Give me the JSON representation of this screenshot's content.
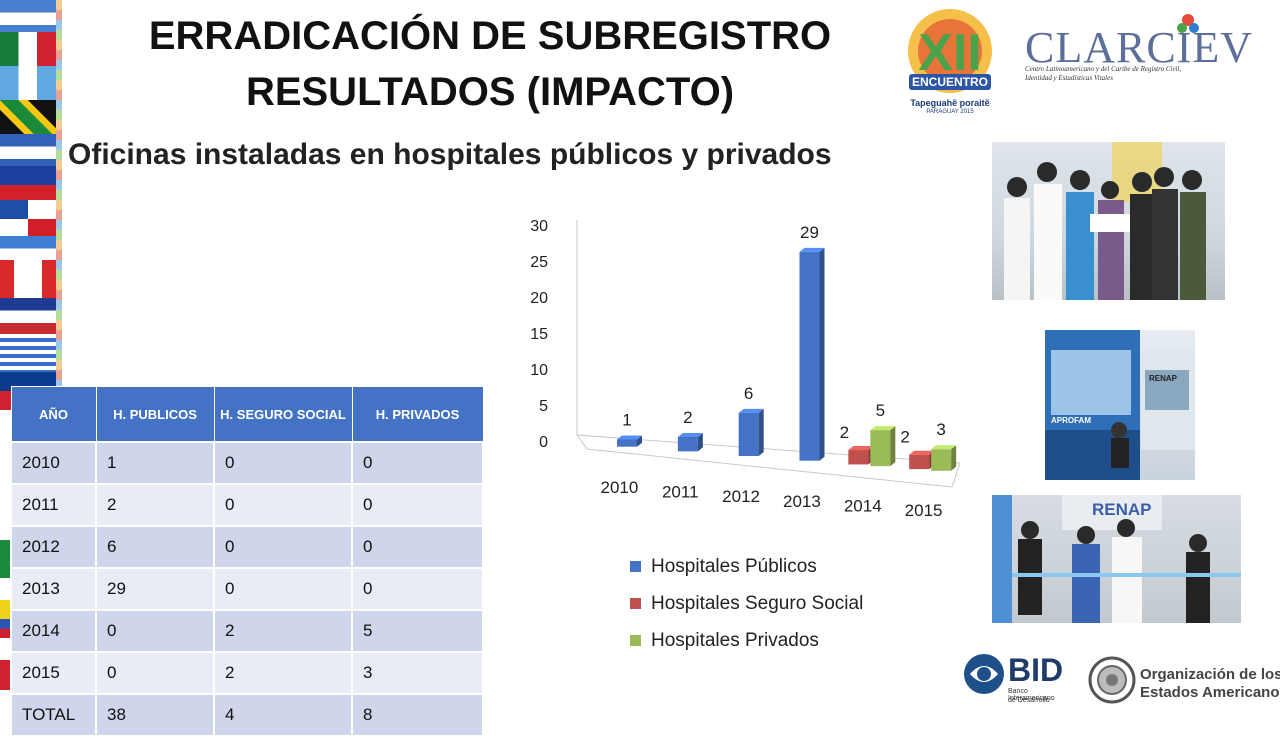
{
  "header": {
    "title_line1": "ERRADICACIÓN DE SUBREGISTRO",
    "title_line2": "RESULTADOS (IMPACTO)",
    "subtitle": "Oficinas instaladas en hospitales públicos y privados"
  },
  "logos": {
    "encuentro_text": "ENCUENTRO",
    "encuentro_caption": "Tapeguahẽ poraitẽ",
    "encuentro_caption2": "PARAGUAY 2015",
    "clarciev_name": "CLARCIEV",
    "clarciev_desc1": "Centro Latinoamericano y del Caribe de Registro Civil,",
    "clarciev_desc2": "Identidad y Estadísticas Vitales",
    "bid_name": "BID",
    "bid_desc1": "Banco Interamericano",
    "bid_desc2": "de Desarrollo",
    "oea_line1": "Organización de los",
    "oea_line2": "Estados Americanos"
  },
  "photos": {
    "renap_sign": "RENAP",
    "renap_sign2": "RENAP",
    "aprosaf_sign": "APROFAM"
  },
  "table": {
    "headers": [
      "AÑO",
      "H. PUBLICOS",
      "H.  SEGURO SOCIAL",
      "H. PRIVADOS"
    ],
    "rows": [
      [
        "2010",
        "1",
        "0",
        "0"
      ],
      [
        "2011",
        "2",
        "0",
        "0"
      ],
      [
        "2012",
        "6",
        "0",
        "0"
      ],
      [
        "2013",
        "29",
        "0",
        "0"
      ],
      [
        "2014",
        "0",
        "2",
        "5"
      ],
      [
        "2015",
        "0",
        "2",
        "3"
      ],
      [
        "TOTAL",
        "38",
        "4",
        "8"
      ]
    ]
  },
  "colors": {
    "publicos": "#4472c4",
    "seguro": "#c0504d",
    "privados": "#9bbb59",
    "table_header": "#4472c4"
  },
  "chart_data": {
    "type": "bar",
    "categories": [
      "2010",
      "2011",
      "2012",
      "2013",
      "2014",
      "2015"
    ],
    "series": [
      {
        "name": "Hospitales Públicos",
        "values": [
          1,
          2,
          6,
          29,
          0,
          0
        ]
      },
      {
        "name": "Hospitales Seguro Social",
        "values": [
          0,
          0,
          0,
          0,
          2,
          2
        ]
      },
      {
        "name": "Hospitales Privados",
        "values": [
          0,
          0,
          0,
          0,
          5,
          3
        ]
      }
    ],
    "ylim": [
      0,
      30
    ],
    "yticks": [
      "0",
      "5",
      "10",
      "15",
      "20",
      "25",
      "30"
    ],
    "grid": false,
    "legend": "bottom"
  }
}
